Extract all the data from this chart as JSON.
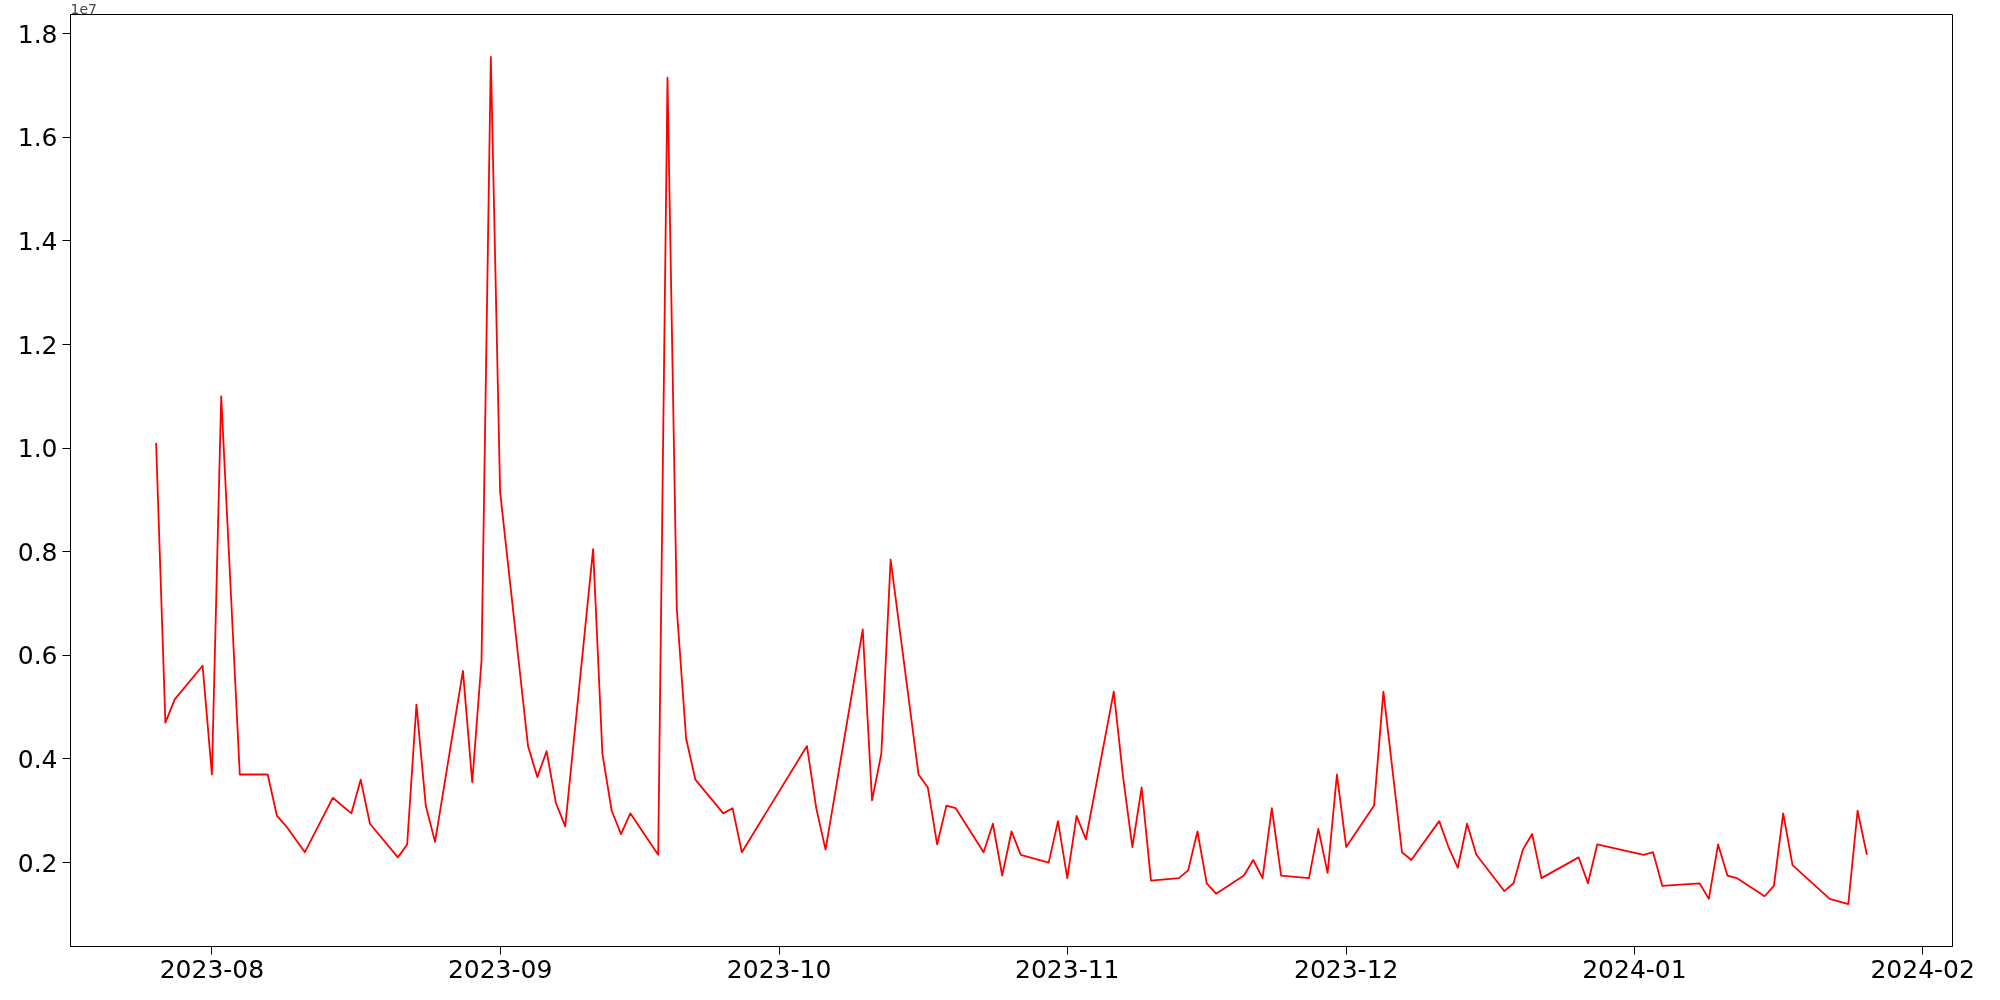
{
  "chart_data": {
    "type": "line",
    "x": [
      "2023-07-26",
      "2023-07-27",
      "2023-07-28",
      "2023-07-31",
      "2023-08-01",
      "2023-08-02",
      "2023-08-04",
      "2023-08-07",
      "2023-08-08",
      "2023-08-09",
      "2023-08-10",
      "2023-08-11",
      "2023-08-14",
      "2023-08-16",
      "2023-08-17",
      "2023-08-18",
      "2023-08-21",
      "2023-08-22",
      "2023-08-23",
      "2023-08-24",
      "2023-08-25",
      "2023-08-28",
      "2023-08-29",
      "2023-08-30",
      "2023-08-31",
      "2023-09-01",
      "2023-09-04",
      "2023-09-05",
      "2023-09-06",
      "2023-09-07",
      "2023-09-08",
      "2023-09-11",
      "2023-09-12",
      "2023-09-13",
      "2023-09-14",
      "2023-09-15",
      "2023-09-18",
      "2023-09-19",
      "2023-09-20",
      "2023-09-21",
      "2023-09-22",
      "2023-09-25",
      "2023-09-26",
      "2023-09-27",
      "2023-10-04",
      "2023-10-05",
      "2023-10-06",
      "2023-10-10",
      "2023-10-11",
      "2023-10-12",
      "2023-10-13",
      "2023-10-16",
      "2023-10-17",
      "2023-10-18",
      "2023-10-19",
      "2023-10-20",
      "2023-10-23",
      "2023-10-24",
      "2023-10-25",
      "2023-10-26",
      "2023-10-27",
      "2023-10-30",
      "2023-10-31",
      "2023-11-01",
      "2023-11-02",
      "2023-11-03",
      "2023-11-06",
      "2023-11-07",
      "2023-11-08",
      "2023-11-09",
      "2023-11-10",
      "2023-11-13",
      "2023-11-14",
      "2023-11-15",
      "2023-11-16",
      "2023-11-17",
      "2023-11-20",
      "2023-11-21",
      "2023-11-22",
      "2023-11-23",
      "2023-11-24",
      "2023-11-27",
      "2023-11-28",
      "2023-11-29",
      "2023-11-30",
      "2023-12-01",
      "2023-12-04",
      "2023-12-05",
      "2023-12-07",
      "2023-12-08",
      "2023-12-11",
      "2023-12-12",
      "2023-12-13",
      "2023-12-14",
      "2023-12-15",
      "2023-12-18",
      "2023-12-19",
      "2023-12-20",
      "2023-12-21",
      "2023-12-22",
      "2023-12-26",
      "2023-12-27",
      "2023-12-28",
      "2024-01-02",
      "2024-01-03",
      "2024-01-04",
      "2024-01-08",
      "2024-01-09",
      "2024-01-10",
      "2024-01-11",
      "2024-01-12",
      "2024-01-15",
      "2024-01-16",
      "2024-01-17",
      "2024-01-18",
      "2024-01-22",
      "2024-01-24",
      "2024-01-25",
      "2024-01-26"
    ],
    "series": [
      {
        "color": "#ff0000",
        "values": [
          1.01,
          0.47,
          0.515,
          0.58,
          0.37,
          1.1,
          0.37,
          0.37,
          0.29,
          0.27,
          0.245,
          0.22,
          0.325,
          0.295,
          0.36,
          0.275,
          0.21,
          0.235,
          0.505,
          0.31,
          0.24,
          0.57,
          0.355,
          0.59,
          1.755,
          0.915,
          0.425,
          0.365,
          0.415,
          0.315,
          0.27,
          0.805,
          0.41,
          0.3,
          0.255,
          0.295,
          0.215,
          1.715,
          0.69,
          0.44,
          0.36,
          0.295,
          0.305,
          0.22,
          0.425,
          0.305,
          0.225,
          0.65,
          0.32,
          0.41,
          0.785,
          0.37,
          0.345,
          0.235,
          0.31,
          0.305,
          0.22,
          0.275,
          0.175,
          0.26,
          0.215,
          0.2,
          0.28,
          0.17,
          0.29,
          0.245,
          0.53,
          0.365,
          0.23,
          0.345,
          0.165,
          0.17,
          0.185,
          0.26,
          0.16,
          0.14,
          0.175,
          0.205,
          0.17,
          0.305,
          0.175,
          0.17,
          0.265,
          0.18,
          0.37,
          0.23,
          0.31,
          0.53,
          0.22,
          0.205,
          0.28,
          0.23,
          0.19,
          0.275,
          0.215,
          0.145,
          0.16,
          0.225,
          0.255,
          0.17,
          0.21,
          0.16,
          0.235,
          0.215,
          0.22,
          0.155,
          0.16,
          0.13,
          0.235,
          0.175,
          0.17,
          0.135,
          0.155,
          0.295,
          0.195,
          0.13,
          0.12,
          0.3,
          0.215
        ]
      }
    ],
    "xlim": [
      "2023-07-16T19:00",
      "2024-02-04T05:00"
    ],
    "xticks": [
      {
        "value": "2023-08-01",
        "label": "2023-08"
      },
      {
        "value": "2023-09-01",
        "label": "2023-09"
      },
      {
        "value": "2023-10-01",
        "label": "2023-10"
      },
      {
        "value": "2023-11-01",
        "label": "2023-11"
      },
      {
        "value": "2023-12-01",
        "label": "2023-12"
      },
      {
        "value": "2024-01-01",
        "label": "2024-01"
      },
      {
        "value": "2024-02-01",
        "label": "2024-02"
      }
    ],
    "ylim": [
      0.038,
      1.837
    ],
    "yticks": [
      0.2,
      0.4,
      0.6,
      0.8,
      {
        "value": 1,
        "label": "1.0"
      },
      1.2,
      1.4,
      1.6,
      1.8
    ],
    "annotations": [
      "1e7"
    ],
    "grid": false,
    "line_style": "solid"
  }
}
